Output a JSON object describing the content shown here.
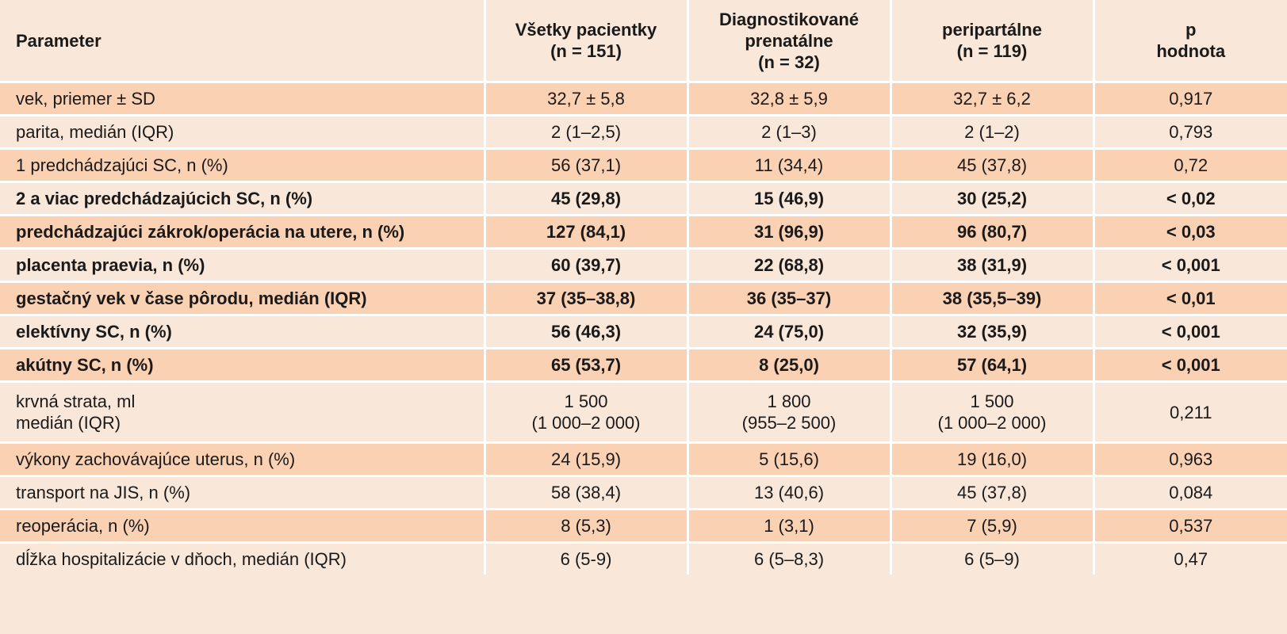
{
  "table": {
    "headers": [
      [
        "Parameter"
      ],
      [
        "Všetky pacientky",
        "(n = 151)"
      ],
      [
        "Diagnostikované",
        "prenatálne",
        "(n = 32)"
      ],
      [
        "peripartálne",
        "(n = 119)"
      ],
      [
        "p",
        "hodnota"
      ]
    ],
    "rows": [
      {
        "cells": [
          [
            "vek, priemer ± SD"
          ],
          [
            "32,7 ± 5,8"
          ],
          [
            "32,8 ± 5,9"
          ],
          [
            "32,7 ± 6,2"
          ],
          [
            "0,917"
          ]
        ],
        "bold": false
      },
      {
        "cells": [
          [
            "parita, medián (IQR)"
          ],
          [
            "2 (1–2,5)"
          ],
          [
            "2 (1–3)"
          ],
          [
            "2 (1–2)"
          ],
          [
            "0,793"
          ]
        ],
        "bold": false
      },
      {
        "cells": [
          [
            "1 predchádzajúci SC, n (%)"
          ],
          [
            "56 (37,1)"
          ],
          [
            "11 (34,4)"
          ],
          [
            "45 (37,8)"
          ],
          [
            "0,72"
          ]
        ],
        "bold": false
      },
      {
        "cells": [
          [
            "2 a viac predchádzajúcich SC, n (%)"
          ],
          [
            "45 (29,8)"
          ],
          [
            "15 (46,9)"
          ],
          [
            "30 (25,2)"
          ],
          [
            "< 0,02"
          ]
        ],
        "bold": true
      },
      {
        "cells": [
          [
            "predchádzajúci zákrok/operácia na utere, n (%)"
          ],
          [
            "127 (84,1)"
          ],
          [
            "31 (96,9)"
          ],
          [
            "96 (80,7)"
          ],
          [
            "< 0,03"
          ]
        ],
        "bold": true
      },
      {
        "cells": [
          [
            "placenta praevia, n (%)"
          ],
          [
            "60 (39,7)"
          ],
          [
            "22 (68,8)"
          ],
          [
            "38 (31,9)"
          ],
          [
            "< 0,001"
          ]
        ],
        "bold": true
      },
      {
        "cells": [
          [
            "gestačný vek v čase pôrodu, medián (IQR)"
          ],
          [
            "37 (35–38,8)"
          ],
          [
            "36 (35–37)"
          ],
          [
            "38 (35,5–39)"
          ],
          [
            "< 0,01"
          ]
        ],
        "bold": true
      },
      {
        "cells": [
          [
            "elektívny SC, n (%)"
          ],
          [
            "56 (46,3)"
          ],
          [
            "24 (75,0)"
          ],
          [
            "32 (35,9)"
          ],
          [
            "< 0,001"
          ]
        ],
        "bold": true
      },
      {
        "cells": [
          [
            "akútny SC, n (%)"
          ],
          [
            "65 (53,7)"
          ],
          [
            "8 (25,0)"
          ],
          [
            "57 (64,1)"
          ],
          [
            "< 0,001"
          ]
        ],
        "bold": true
      },
      {
        "cells": [
          [
            "krvná strata, ml",
            "medián (IQR)"
          ],
          [
            "1 500",
            "(1 000–2 000)"
          ],
          [
            "1 800",
            "(955–2 500)"
          ],
          [
            "1 500",
            "(1 000–2 000)"
          ],
          [
            "0,211"
          ]
        ],
        "bold": false
      },
      {
        "cells": [
          [
            "výkony zachovávajúce uterus, n (%)"
          ],
          [
            "24 (15,9)"
          ],
          [
            "5 (15,6)"
          ],
          [
            "19 (16,0)"
          ],
          [
            "0,963"
          ]
        ],
        "bold": false
      },
      {
        "cells": [
          [
            "transport na JIS, n (%)"
          ],
          [
            "58 (38,4)"
          ],
          [
            "13 (40,6)"
          ],
          [
            "45 (37,8)"
          ],
          [
            "0,084"
          ]
        ],
        "bold": false
      },
      {
        "cells": [
          [
            "reoperácia, n (%)"
          ],
          [
            "8 (5,3)"
          ],
          [
            "1 (3,1)"
          ],
          [
            "7 (5,9)"
          ],
          [
            "0,537"
          ]
        ],
        "bold": false
      },
      {
        "cells": [
          [
            "dĺžka hospitalizácie v dňoch, medián (IQR)"
          ],
          [
            "6 (5-9)"
          ],
          [
            "6 (5–8,3)"
          ],
          [
            "6 (5–9)"
          ],
          [
            "0,47"
          ]
        ],
        "bold": false
      }
    ]
  },
  "colors": {
    "header_bg": "#f9e7d9",
    "row_dark": "#fbd1b4",
    "row_light": "#f9e7d9",
    "separator": "#ffffff",
    "text": "#1a1a1a"
  }
}
